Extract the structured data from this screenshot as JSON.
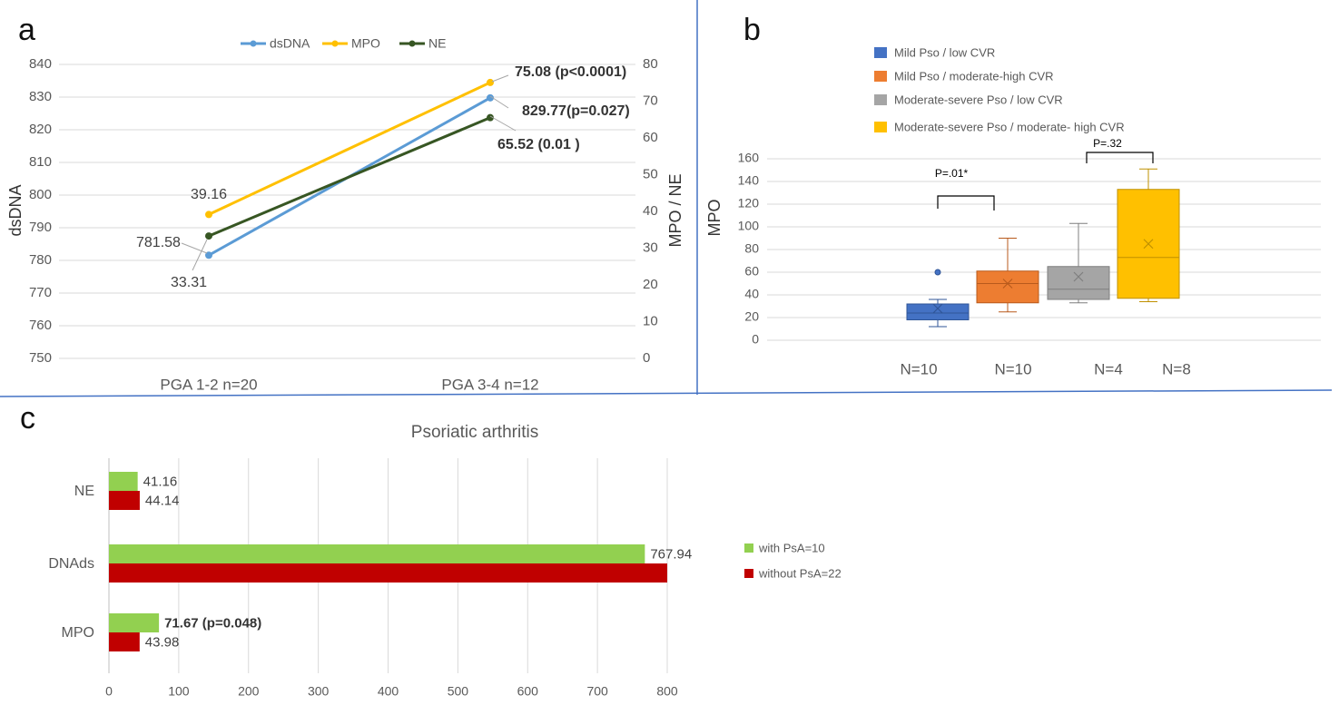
{
  "panels": {
    "a": "a",
    "b": "b",
    "c": "c"
  },
  "chart_data": [
    {
      "id": "a",
      "type": "line",
      "categories": [
        "PGA 1-2 n=20",
        "PGA 3-4 n=12"
      ],
      "ylabel_left": "dsDNA",
      "ylabel_right": "MPO / NE",
      "ylim_left": [
        750,
        840
      ],
      "ylim_right": [
        0,
        80
      ],
      "yticks_left": [
        750,
        760,
        770,
        780,
        790,
        800,
        810,
        820,
        830,
        840
      ],
      "yticks_right": [
        0,
        10,
        20,
        30,
        40,
        50,
        60,
        70,
        80
      ],
      "grid": true,
      "legend": "top",
      "series": [
        {
          "name": "dsDNA",
          "axis": "left",
          "values": [
            781.58,
            829.77
          ],
          "color": "#5B9BD5"
        },
        {
          "name": "MPO",
          "axis": "right",
          "values": [
            39.16,
            75.08
          ],
          "color": "#FFC000"
        },
        {
          "name": "NE",
          "axis": "right",
          "values": [
            33.31,
            65.52
          ],
          "color": "#375623"
        }
      ],
      "annotations": [
        {
          "text": "39.16",
          "bold": false
        },
        {
          "text": "781.58",
          "bold": false
        },
        {
          "text": "33.31",
          "bold": false
        },
        {
          "text": "75.08 (p<0.0001)",
          "bold": true
        },
        {
          "text": "829.77(p=0.027)",
          "bold": true
        },
        {
          "text": "65.52 (0.01 )",
          "bold": true
        }
      ]
    },
    {
      "id": "b",
      "type": "box",
      "ylabel": "MPO",
      "ylim": [
        0,
        160
      ],
      "yticks": [
        0,
        20,
        40,
        60,
        80,
        100,
        120,
        140,
        160
      ],
      "grid": true,
      "legend": "top",
      "categories": [
        "N=10",
        "N=10",
        "N=4",
        "N=8"
      ],
      "series": [
        {
          "name": "Mild Pso / low CVR",
          "color": "#4472C4",
          "stroke": "#2F5597",
          "min": 12,
          "q1": 18,
          "median": 24,
          "q3": 32,
          "max": 36,
          "mean": 28,
          "outliers": [
            60
          ]
        },
        {
          "name": "Mild Pso / moderate-high CVR",
          "color": "#ED7D31",
          "stroke": "#B85A1C",
          "min": 25,
          "q1": 33,
          "median": 50,
          "q3": 61,
          "max": 90,
          "mean": 50,
          "outliers": []
        },
        {
          "name": "Moderate-severe Pso / low CVR",
          "color": "#A5A5A5",
          "stroke": "#7F7F7F",
          "min": 33,
          "q1": 36,
          "median": 45,
          "q3": 65,
          "max": 103,
          "mean": 56,
          "outliers": []
        },
        {
          "name": "Moderate-severe Pso /  moderate- high CVR",
          "color": "#FFC000",
          "stroke": "#BF9000",
          "min": 34,
          "q1": 37,
          "median": 73,
          "q3": 133,
          "max": 151,
          "mean": 85,
          "outliers": []
        }
      ],
      "annotations": [
        {
          "text": "P=.01*"
        },
        {
          "text": "P=.32"
        }
      ]
    },
    {
      "id": "c",
      "type": "bar",
      "orientation": "horizontal",
      "title": "Psoriatic arthritis",
      "categories": [
        "NE",
        "DNAds",
        "MPO"
      ],
      "xlim": [
        0,
        800
      ],
      "xticks": [
        0,
        100,
        200,
        300,
        400,
        500,
        600,
        700,
        800
      ],
      "grid": true,
      "legend": "right",
      "series": [
        {
          "name": "with PsA=10",
          "values": [
            41.16,
            767.94,
            71.67
          ],
          "color": "#92D050"
        },
        {
          "name": "without PsA=22",
          "values": [
            44.14,
            800,
            43.98
          ],
          "color": "#C00000"
        }
      ],
      "data_labels": [
        {
          "text": "41.16",
          "bold": false
        },
        {
          "text": "44.14",
          "bold": false
        },
        {
          "text": "767.94",
          "bold": false
        },
        {
          "text": "71.67 (p=0.048)",
          "bold": true
        },
        {
          "text": "43.98",
          "bold": false
        }
      ]
    }
  ]
}
